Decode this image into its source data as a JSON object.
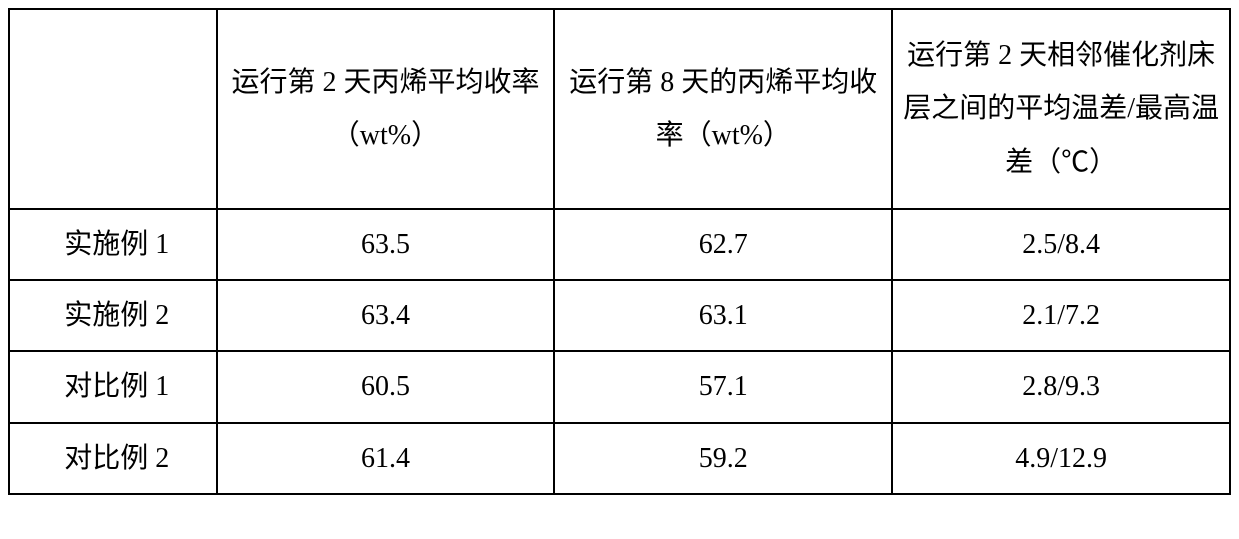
{
  "table": {
    "columns": [
      "",
      "运行第 2 天丙烯平均收率（wt%）",
      "运行第 8 天的丙烯平均收率（wt%）",
      "运行第 2 天相邻催化剂床层之间的平均温差/最高温差（℃）"
    ],
    "rows": [
      {
        "label": "实施例 1",
        "c1": "63.5",
        "c2": "62.7",
        "c3": "2.5/8.4"
      },
      {
        "label": "实施例 2",
        "c1": "63.4",
        "c2": "63.1",
        "c3": "2.1/7.2"
      },
      {
        "label": "对比例 1",
        "c1": "60.5",
        "c2": "57.1",
        "c3": "2.8/9.3"
      },
      {
        "label": "对比例 2",
        "c1": "61.4",
        "c2": "59.2",
        "c3": "4.9/12.9"
      }
    ],
    "border_color": "#000000",
    "background_color": "#ffffff",
    "text_color": "#000000",
    "font_size": 28,
    "col_widths": [
      "17%",
      "27.67%",
      "27.67%",
      "27.67%"
    ]
  }
}
